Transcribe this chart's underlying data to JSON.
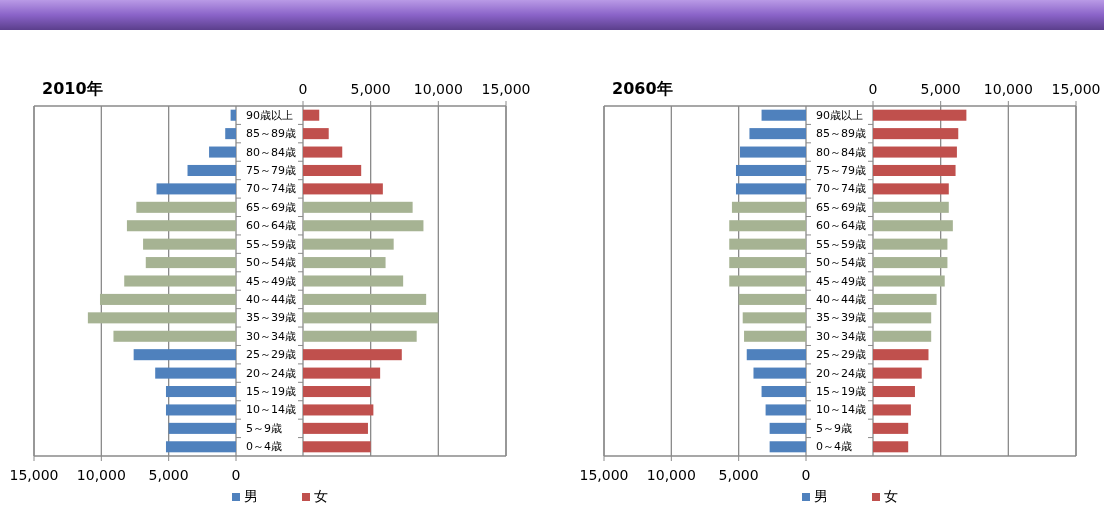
{
  "chart_data": [
    {
      "type": "bar",
      "orientation": "horizontal",
      "title": "2010年",
      "legend": "bottom",
      "grid": true,
      "categories": [
        "90歳以上",
        "85～89歳",
        "80～84歳",
        "75～79歳",
        "70～74歳",
        "65～69歳",
        "60～64歳",
        "55～59歳",
        "50～54歳",
        "45～49歳",
        "40～44歳",
        "35～39歳",
        "30～34歳",
        "25～29歳",
        "20～24歳",
        "15～19歳",
        "10～14歳",
        "5～9歳",
        "0～4歳"
      ],
      "xlim": [
        15000,
        0
      ],
      "xticks": [
        {
          "value": 15000,
          "label": "15,000"
        },
        {
          "value": 10000,
          "label": "10,000"
        },
        {
          "value": 5000,
          "label": "5,000"
        },
        {
          "value": 0,
          "label": "0"
        }
      ],
      "series": [
        {
          "name": "男",
          "color": "#4f81bd",
          "colors": [
            "#4f81bd",
            "#4f81bd",
            "#4f81bd",
            "#4f81bd",
            "#4f81bd",
            "#a6b393",
            "#a6b393",
            "#a6b393",
            "#a6b393",
            "#a6b393",
            "#a6b393",
            "#a6b393",
            "#a6b393",
            "#4f81bd",
            "#4f81bd",
            "#4f81bd",
            "#4f81bd",
            "#4f81bd",
            "#4f81bd"
          ],
          "values": [
            400,
            800,
            2000,
            3600,
            5900,
            7400,
            8100,
            6900,
            6700,
            8300,
            10100,
            11000,
            9100,
            7600,
            6000,
            5200,
            5200,
            5000,
            5200
          ]
        }
      ]
    },
    {
      "type": "bar",
      "orientation": "horizontal",
      "legend": "bottom",
      "grid": true,
      "tick_labels": "x",
      "categories": [
        null,
        null,
        null,
        null,
        null,
        null,
        null,
        null,
        null,
        null,
        null,
        null,
        null,
        null,
        null,
        null,
        null,
        null,
        null
      ],
      "xlim": [
        0,
        15000
      ],
      "xticks": [
        {
          "value": 0,
          "label": "0"
        },
        {
          "value": 5000,
          "label": "5,000"
        },
        {
          "value": 10000,
          "label": "10,000"
        },
        {
          "value": 15000,
          "label": "15,000"
        }
      ],
      "series": [
        {
          "name": "女",
          "color": "#c0504d",
          "colors": [
            "#c0504d",
            "#c0504d",
            "#c0504d",
            "#c0504d",
            "#c0504d",
            "#a6b393",
            "#a6b393",
            "#a6b393",
            "#a6b393",
            "#a6b393",
            "#a6b393",
            "#a6b393",
            "#a6b393",
            "#c0504d",
            "#c0504d",
            "#c0504d",
            "#c0504d",
            "#c0504d",
            "#c0504d"
          ],
          "values": [
            1200,
            1900,
            2900,
            4300,
            5900,
            8100,
            8900,
            6700,
            6100,
            7400,
            9100,
            10000,
            8400,
            7300,
            5700,
            5000,
            5200,
            4800,
            5000
          ]
        }
      ]
    },
    {
      "type": "bar",
      "orientation": "horizontal",
      "title": "2060年",
      "legend": "bottom",
      "grid": true,
      "categories": [
        "90歳以上",
        "85～89歳",
        "80～84歳",
        "75～79歳",
        "70～74歳",
        "65～69歳",
        "60～64歳",
        "55～59歳",
        "50～54歳",
        "45～49歳",
        "40～44歳",
        "35～39歳",
        "30～34歳",
        "25～29歳",
        "20～24歳",
        "15～19歳",
        "10～14歳",
        "5～9歳",
        "0～4歳"
      ],
      "xlim": [
        15000,
        0
      ],
      "xticks": [
        {
          "value": 15000,
          "label": "15,000"
        },
        {
          "value": 10000,
          "label": "10,000"
        },
        {
          "value": 5000,
          "label": "5,000"
        },
        {
          "value": 0,
          "label": "0"
        }
      ],
      "series": [
        {
          "name": "男",
          "color": "#4f81bd",
          "colors": [
            "#4f81bd",
            "#4f81bd",
            "#4f81bd",
            "#4f81bd",
            "#4f81bd",
            "#a6b393",
            "#a6b393",
            "#a6b393",
            "#a6b393",
            "#a6b393",
            "#a6b393",
            "#a6b393",
            "#a6b393",
            "#4f81bd",
            "#4f81bd",
            "#4f81bd",
            "#4f81bd",
            "#4f81bd",
            "#4f81bd"
          ],
          "values": [
            3300,
            4200,
            4900,
            5200,
            5200,
            5500,
            5700,
            5700,
            5700,
            5700,
            5000,
            4700,
            4600,
            4400,
            3900,
            3300,
            3000,
            2700,
            2700
          ]
        }
      ]
    },
    {
      "type": "bar",
      "orientation": "horizontal",
      "legend": "bottom",
      "grid": true,
      "tick_labels": "x",
      "categories": [
        null,
        null,
        null,
        null,
        null,
        null,
        null,
        null,
        null,
        null,
        null,
        null,
        null,
        null,
        null,
        null,
        null,
        null,
        null
      ],
      "xlim": [
        0,
        15000
      ],
      "xticks": [
        {
          "value": 0,
          "label": "0"
        },
        {
          "value": 5000,
          "label": "5,000"
        },
        {
          "value": 10000,
          "label": "10,000"
        },
        {
          "value": 15000,
          "label": "15,000"
        }
      ],
      "series": [
        {
          "name": "女",
          "color": "#c0504d",
          "colors": [
            "#c0504d",
            "#c0504d",
            "#c0504d",
            "#c0504d",
            "#c0504d",
            "#a6b393",
            "#a6b393",
            "#a6b393",
            "#a6b393",
            "#a6b393",
            "#a6b393",
            "#a6b393",
            "#a6b393",
            "#c0504d",
            "#c0504d",
            "#c0504d",
            "#c0504d",
            "#c0504d",
            "#c0504d"
          ],
          "values": [
            6900,
            6300,
            6200,
            6100,
            5600,
            5600,
            5900,
            5500,
            5500,
            5300,
            4700,
            4300,
            4300,
            4100,
            3600,
            3100,
            2800,
            2600,
            2600
          ]
        }
      ]
    }
  ]
}
